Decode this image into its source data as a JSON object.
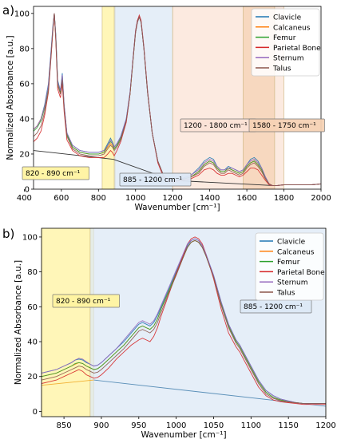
{
  "series_colors": {
    "Clavicle": "#1f77b4",
    "Calcaneus": "#ff7f0e",
    "Femur": "#2ca02c",
    "Parietal Bone": "#d62728",
    "Sternum": "#9467bd",
    "Talus": "#8c564b"
  },
  "chart_data": [
    {
      "panel_label": "a)",
      "type": "line",
      "title": "",
      "xlabel": "Wavenumber [cm⁻¹]",
      "ylabel": "Normalized Absorbance [a.u.]",
      "xlim": [
        450,
        2000
      ],
      "ylim": [
        0,
        104
      ],
      "xticks": [
        400,
        600,
        800,
        1000,
        1200,
        1400,
        1600,
        1800,
        2000
      ],
      "yticks": [
        0,
        20,
        40,
        60,
        80,
        100
      ],
      "legend": [
        "Clavicle",
        "Calcaneus",
        "Femur",
        "Parietal Bone",
        "Sternum",
        "Talus"
      ],
      "legend_position": "top-right",
      "regions": [
        {
          "x": [
            820,
            890
          ],
          "color": "#fff3a0",
          "label": "820 - 890 cm⁻¹"
        },
        {
          "x": [
            885,
            1200
          ],
          "color": "#dce8f6",
          "label": "885 - 1200 cm⁻¹"
        },
        {
          "x": [
            1200,
            1800
          ],
          "color": "#fbe3d6",
          "label": "1200 - 1800 cm⁻¹"
        },
        {
          "x": [
            1580,
            1750
          ],
          "color": "#f6d2b4",
          "label": "1580 - 1750 cm⁻¹"
        }
      ],
      "baselines": [
        {
          "x": [
            450,
            880
          ],
          "y": [
            22,
            17
          ]
        },
        {
          "x": [
            880,
            1200
          ],
          "y": [
            17,
            5
          ]
        },
        {
          "x": [
            1200,
            1750
          ],
          "y": [
            5,
            2
          ]
        }
      ],
      "x": [
        450,
        470,
        490,
        510,
        530,
        545,
        555,
        562,
        570,
        580,
        595,
        605,
        615,
        630,
        660,
        700,
        750,
        800,
        830,
        850,
        865,
        875,
        885,
        900,
        920,
        950,
        970,
        985,
        1000,
        1010,
        1020,
        1030,
        1045,
        1065,
        1090,
        1120,
        1150,
        1180,
        1200,
        1250,
        1300,
        1340,
        1370,
        1400,
        1420,
        1440,
        1460,
        1480,
        1500,
        1520,
        1540,
        1560,
        1580,
        1600,
        1620,
        1640,
        1660,
        1680,
        1700,
        1720,
        1740,
        1760,
        1800,
        1850,
        1900,
        1950,
        2000
      ],
      "series": [
        {
          "name": "Clavicle",
          "y": [
            34,
            36,
            40,
            48,
            60,
            80,
            94,
            100,
            88,
            62,
            56,
            66,
            48,
            32,
            25,
            22,
            21,
            21,
            22,
            26,
            29,
            27,
            24,
            26,
            30,
            40,
            55,
            73,
            90,
            96,
            98,
            95,
            80,
            55,
            32,
            16,
            8,
            5,
            4.5,
            6,
            8,
            12,
            16,
            18,
            17,
            13,
            11,
            11,
            13,
            12,
            11,
            10,
            11,
            14,
            17,
            18,
            16,
            12,
            7,
            3,
            2,
            2,
            2.5,
            2.5,
            2.5,
            2.5,
            3
          ]
        },
        {
          "name": "Calcaneus",
          "y": [
            34,
            36,
            40,
            47,
            58,
            78,
            92,
            100,
            86,
            60,
            55,
            64,
            47,
            31,
            24,
            21,
            20,
            20,
            21,
            24,
            26,
            25,
            23,
            25,
            29,
            39,
            54,
            72,
            89,
            95,
            98,
            95,
            80,
            55,
            32,
            16,
            8,
            5,
            4.5,
            5.5,
            7,
            10,
            14,
            16,
            15,
            12,
            10,
            10,
            12,
            11,
            10,
            9,
            10,
            13,
            15,
            16,
            14,
            11,
            6,
            3,
            2,
            2,
            2.5,
            2.5,
            2.5,
            2.5,
            3
          ]
        },
        {
          "name": "Femur",
          "y": [
            33,
            35,
            39,
            46,
            58,
            78,
            92,
            100,
            87,
            61,
            55,
            64,
            47,
            31,
            24,
            21,
            20,
            20,
            21,
            25,
            27,
            26,
            23,
            25,
            29,
            39,
            54,
            72,
            89,
            95,
            98,
            95,
            80,
            55,
            32,
            16,
            8,
            5,
            4.5,
            5.5,
            7,
            10,
            14,
            16,
            15,
            12,
            10,
            10,
            12,
            11,
            10,
            9,
            10,
            13,
            15,
            16,
            14,
            11,
            6,
            3,
            2,
            2,
            2.5,
            2.5,
            2.5,
            2.5,
            3
          ]
        },
        {
          "name": "Parietal Bone",
          "y": [
            27,
            29,
            33,
            42,
            55,
            76,
            91,
            100,
            84,
            57,
            52,
            60,
            44,
            28,
            22,
            19,
            18,
            18,
            18,
            20,
            22,
            21,
            19,
            22,
            27,
            38,
            54,
            73,
            90,
            96,
            99,
            96,
            81,
            56,
            32,
            15,
            7,
            4.5,
            4,
            5,
            6,
            8,
            11,
            12,
            11,
            9,
            8,
            8,
            9,
            9,
            8,
            7,
            8,
            10,
            12,
            12,
            11,
            8,
            5,
            2.5,
            2,
            2,
            2.5,
            2.5,
            2.5,
            2.5,
            3
          ]
        },
        {
          "name": "Sternum",
          "y": [
            34,
            36,
            40,
            47,
            59,
            79,
            93,
            100,
            87,
            61,
            56,
            65,
            48,
            32,
            25,
            22,
            21,
            21,
            22,
            25,
            28,
            26,
            24,
            26,
            30,
            40,
            55,
            73,
            89,
            95,
            98,
            95,
            80,
            55,
            32,
            16,
            8,
            5,
            4.5,
            6,
            8,
            11,
            15,
            17,
            16,
            13,
            11,
            11,
            12,
            12,
            11,
            10,
            11,
            14,
            16,
            17,
            15,
            12,
            7,
            3,
            2,
            2,
            2.5,
            2.5,
            2.5,
            2.5,
            3
          ]
        },
        {
          "name": "Talus",
          "y": [
            30,
            32,
            36,
            44,
            56,
            77,
            92,
            100,
            85,
            59,
            54,
            62,
            46,
            30,
            23,
            20,
            19,
            19,
            20,
            23,
            25,
            24,
            22,
            24,
            28,
            39,
            54,
            72,
            89,
            95,
            98,
            95,
            80,
            55,
            32,
            16,
            8,
            5,
            4.5,
            5.5,
            7,
            9,
            13,
            15,
            14,
            11,
            9,
            9,
            11,
            10,
            9,
            8,
            9,
            12,
            14,
            15,
            13,
            10,
            6,
            3,
            2,
            2,
            2.5,
            2.5,
            2.5,
            2.5,
            3
          ]
        }
      ]
    },
    {
      "panel_label": "b)",
      "type": "line",
      "title": "",
      "xlabel": "Wavenumber [cm⁻¹]",
      "ylabel": "Normalized Absorbance [a.u.]",
      "xlim": [
        820,
        1200
      ],
      "ylim": [
        -3,
        105
      ],
      "xticks": [
        850,
        900,
        950,
        1000,
        1050,
        1100,
        1150,
        1200
      ],
      "yticks": [
        0,
        20,
        40,
        60,
        80,
        100
      ],
      "legend": [
        "Clavicle",
        "Calcaneus",
        "Femur",
        "Parietal Bone",
        "Sternum",
        "Talus"
      ],
      "legend_position": "top-right",
      "regions": [
        {
          "x": [
            820,
            890
          ],
          "color": "#fff3a0",
          "label": "820 - 890 cm⁻¹"
        },
        {
          "x": [
            885,
            1200
          ],
          "color": "#dce8f6",
          "label": "885 - 1200 cm⁻¹"
        }
      ],
      "baselines": [
        {
          "x": [
            820,
            890
          ],
          "y": [
            15,
            18
          ],
          "color": "#f2b134"
        },
        {
          "x": [
            890,
            1200
          ],
          "y": [
            18,
            3
          ],
          "color": "#5a8fb8"
        }
      ],
      "x": [
        820,
        830,
        840,
        850,
        860,
        865,
        870,
        875,
        880,
        885,
        890,
        895,
        900,
        910,
        920,
        930,
        940,
        950,
        955,
        960,
        965,
        970,
        975,
        980,
        990,
        1000,
        1010,
        1015,
        1020,
        1025,
        1030,
        1035,
        1040,
        1050,
        1060,
        1070,
        1080,
        1085,
        1090,
        1100,
        1110,
        1120,
        1130,
        1140,
        1150,
        1160,
        1170,
        1180,
        1190,
        1200
      ],
      "series": [
        {
          "name": "Clavicle",
          "y": [
            22,
            23,
            24,
            26,
            28,
            29.5,
            30,
            29.5,
            28,
            27,
            26,
            26.5,
            28,
            32,
            36,
            40,
            45,
            50,
            51,
            50,
            49,
            51,
            55,
            60,
            70,
            80,
            90,
            95,
            98,
            99,
            98,
            95,
            90,
            78,
            63,
            50,
            41,
            38,
            34,
            26,
            18,
            12,
            9,
            7,
            6,
            5,
            4.5,
            4.5,
            4.5,
            4.5
          ]
        },
        {
          "name": "Calcaneus",
          "y": [
            20,
            21,
            22,
            24,
            26,
            27,
            28,
            27.5,
            26,
            25,
            24,
            24.5,
            26,
            30,
            34,
            38,
            43,
            48,
            49,
            48,
            47,
            49,
            53,
            59,
            69,
            79,
            89,
            94,
            97,
            98,
            97,
            94,
            89,
            77,
            62,
            49,
            40,
            37,
            33,
            25,
            17,
            11,
            8,
            6.5,
            5.5,
            5,
            4.5,
            4.5,
            4.5,
            4.5
          ]
        },
        {
          "name": "Femur",
          "y": [
            20,
            21,
            22,
            24,
            26,
            27.5,
            28,
            27.5,
            26,
            25,
            24,
            24.5,
            26,
            30,
            34,
            38,
            43,
            48,
            49,
            48,
            47,
            49,
            53,
            59,
            69,
            79,
            89,
            94,
            97,
            98,
            97,
            94,
            89,
            77,
            62,
            49,
            40,
            37,
            33,
            25,
            17,
            11,
            8,
            6.5,
            5.5,
            5,
            4.5,
            4.5,
            4.5,
            4.5
          ]
        },
        {
          "name": "Parietal Bone",
          "y": [
            16,
            17,
            18,
            20,
            22,
            23,
            24,
            23,
            21,
            20,
            19,
            19.5,
            21,
            25,
            30,
            34,
            38,
            41,
            42,
            41,
            40,
            43,
            48,
            55,
            67,
            79,
            90,
            96,
            99,
            100,
            99,
            96,
            90,
            76,
            59,
            45,
            37,
            34,
            30,
            22,
            14,
            9,
            6.5,
            5.5,
            5,
            4.5,
            4,
            4,
            4,
            4
          ]
        },
        {
          "name": "Sternum",
          "y": [
            22,
            23,
            24,
            26,
            28,
            29.5,
            30.5,
            30,
            28.5,
            27,
            26,
            26.5,
            28,
            32,
            36,
            41,
            46,
            51,
            52,
            51,
            50,
            52,
            56,
            61,
            71,
            81,
            91,
            96,
            98,
            99,
            98,
            95,
            90,
            78,
            63,
            50,
            41,
            38,
            34,
            26,
            18,
            12,
            9,
            7,
            6,
            5,
            4.5,
            4.5,
            4.5,
            4.5
          ]
        },
        {
          "name": "Talus",
          "y": [
            18,
            19,
            20,
            22,
            24,
            25,
            26,
            25.5,
            24,
            23,
            22,
            22.5,
            24,
            28,
            32,
            36,
            41,
            46,
            47,
            46,
            45,
            47,
            51,
            57,
            68,
            78,
            89,
            94,
            97,
            98,
            97,
            94,
            89,
            77,
            61,
            48,
            39,
            36,
            32,
            24,
            16,
            10,
            7.5,
            6,
            5.5,
            5,
            4.5,
            4.5,
            4.5,
            4.5
          ]
        }
      ]
    }
  ]
}
